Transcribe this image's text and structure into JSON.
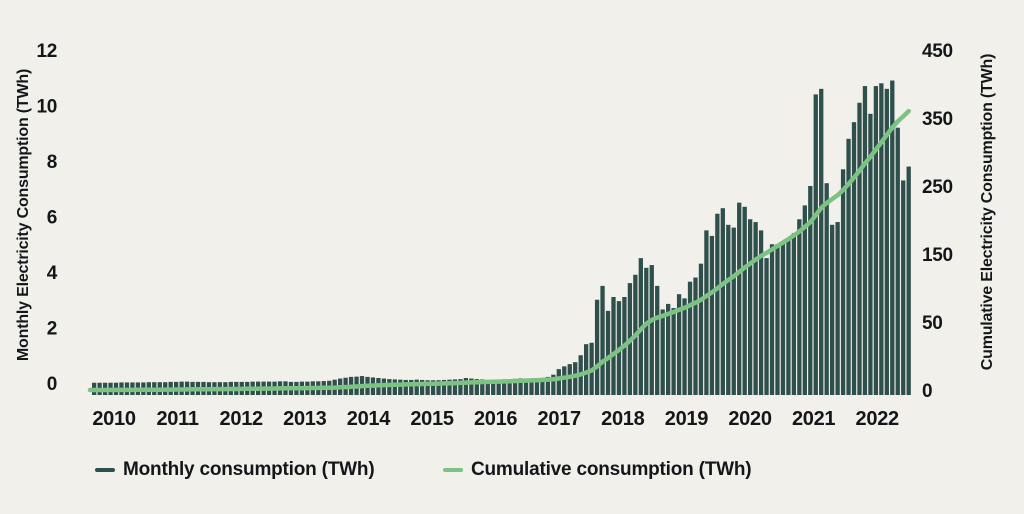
{
  "chart_data": {
    "type": "combo_bar_line",
    "title": "",
    "x_start": "2010-01",
    "x_end": "2022-06",
    "x_tick_labels": [
      "2010",
      "2011",
      "2012",
      "2013",
      "2014",
      "2015",
      "2016",
      "2017",
      "2018",
      "2019",
      "2020",
      "2021",
      "2022"
    ],
    "y_left": {
      "label": "Monthly Electricity Consumption (TWh)",
      "ticks": [
        0,
        2,
        4,
        6,
        8,
        10,
        12
      ],
      "range": [
        0,
        12
      ]
    },
    "y_right": {
      "label": "Cumulative Electricity Consumption (TWh)",
      "ticks": [
        0,
        50,
        150,
        250,
        350,
        450
      ],
      "range": [
        0,
        450
      ],
      "tick_spacing_note": "ticks are evenly spaced on screen: 0, 50, then steps of 100"
    },
    "grid": false,
    "legend_position": "bottom",
    "series": [
      {
        "name": "Monthly consumption (TWh)",
        "type": "bar",
        "color": "#2f4f4c",
        "unit": "TWh",
        "values": [
          0.01,
          0.01,
          0.01,
          0.01,
          0.01,
          0.02,
          0.02,
          0.02,
          0.02,
          0.02,
          0.03,
          0.03,
          0.03,
          0.03,
          0.04,
          0.04,
          0.05,
          0.05,
          0.04,
          0.04,
          0.04,
          0.03,
          0.03,
          0.03,
          0.03,
          0.04,
          0.04,
          0.04,
          0.04,
          0.05,
          0.05,
          0.05,
          0.05,
          0.05,
          0.06,
          0.06,
          0.04,
          0.04,
          0.05,
          0.05,
          0.06,
          0.06,
          0.07,
          0.08,
          0.12,
          0.16,
          0.19,
          0.22,
          0.23,
          0.25,
          0.22,
          0.2,
          0.18,
          0.16,
          0.14,
          0.13,
          0.12,
          0.11,
          0.11,
          0.12,
          0.11,
          0.1,
          0.1,
          0.1,
          0.11,
          0.12,
          0.13,
          0.14,
          0.18,
          0.16,
          0.14,
          0.13,
          0.1,
          0.11,
          0.12,
          0.13,
          0.14,
          0.15,
          0.17,
          0.16,
          0.15,
          0.16,
          0.18,
          0.22,
          0.3,
          0.5,
          0.6,
          0.68,
          0.75,
          1.0,
          1.4,
          1.45,
          3.0,
          3.5,
          2.6,
          3.1,
          2.95,
          3.1,
          3.6,
          3.9,
          4.5,
          4.15,
          4.25,
          3.5,
          2.65,
          2.85,
          2.7,
          3.2,
          3.05,
          3.65,
          3.8,
          4.3,
          5.5,
          5.3,
          6.1,
          6.3,
          5.7,
          5.6,
          6.5,
          6.35,
          5.9,
          5.8,
          5.5,
          4.5,
          5.0,
          5.0,
          5.1,
          5.15,
          5.4,
          5.9,
          6.4,
          7.1,
          10.4,
          10.6,
          7.2,
          5.7,
          5.8,
          7.7,
          8.8,
          9.4,
          10.1,
          10.7,
          9.7,
          10.7,
          10.8,
          10.6,
          10.9,
          9.2,
          7.3,
          7.8
        ]
      },
      {
        "name": "Cumulative consumption (TWh)",
        "type": "line",
        "color": "#7cc284",
        "unit": "TWh",
        "derivation": "running total of the monthly bar values",
        "end_value_approx": 360
      }
    ],
    "legend": [
      {
        "label": "Monthly consumption (TWh)",
        "color": "#2f4f4c"
      },
      {
        "label": "Cumulative consumption (TWh)",
        "color": "#7cc284"
      }
    ],
    "colors": {
      "background": "#f2f0ea",
      "bar": "#2f4f4c",
      "line": "#7cc284",
      "text": "#14171a"
    }
  }
}
